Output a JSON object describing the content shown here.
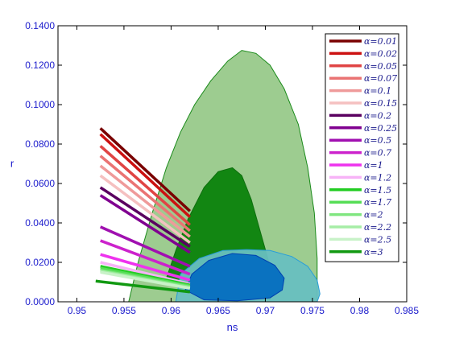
{
  "colors": {
    "axis_text": "#1a1acc",
    "frame": "#000000",
    "contour_95_outer": "#9dcc90",
    "contour_95_inner": "#128612",
    "contour_68_outer": "#68bfc0",
    "contour_68_inner": "#0a72c0"
  },
  "chart_data": {
    "type": "line",
    "xlabel": "ns",
    "ylabel": "r",
    "xlim": [
      0.948,
      0.985
    ],
    "ylim": [
      0,
      0.14
    ],
    "xticks": [
      "0.95",
      "0.955",
      "0.96",
      "0.965",
      "0.97",
      "0.975",
      "0.98",
      "0.985"
    ],
    "xtick_values": [
      0.95,
      0.955,
      0.96,
      0.965,
      0.97,
      0.975,
      0.98,
      0.985
    ],
    "yticks": [
      "0.0000",
      "0.0200",
      "0.0400",
      "0.0600",
      "0.0800",
      "0.1000",
      "0.1200",
      "0.1400"
    ],
    "ytick_values": [
      0,
      0.02,
      0.04,
      0.06,
      0.08,
      0.1,
      0.12,
      0.14
    ],
    "grid": false,
    "legend_position": "top-right",
    "contours": [
      {
        "points": [
          [
            0.9555,
            0
          ],
          [
            0.9565,
            0.02
          ],
          [
            0.958,
            0.045
          ],
          [
            0.9595,
            0.068
          ],
          [
            0.961,
            0.086
          ],
          [
            0.9625,
            0.1
          ],
          [
            0.9642,
            0.112
          ],
          [
            0.966,
            0.122
          ],
          [
            0.9675,
            0.1275
          ],
          [
            0.969,
            0.126
          ],
          [
            0.9705,
            0.12
          ],
          [
            0.972,
            0.108
          ],
          [
            0.9735,
            0.09
          ],
          [
            0.9745,
            0.068
          ],
          [
            0.9752,
            0.045
          ],
          [
            0.9755,
            0.022
          ],
          [
            0.9755,
            0
          ]
        ]
      },
      {
        "points": [
          [
            0.9595,
            0.012
          ],
          [
            0.9605,
            0.026
          ],
          [
            0.9618,
            0.042
          ],
          [
            0.9635,
            0.058
          ],
          [
            0.965,
            0.066
          ],
          [
            0.9665,
            0.068
          ],
          [
            0.9675,
            0.064
          ],
          [
            0.9685,
            0.052
          ],
          [
            0.9695,
            0.035
          ],
          [
            0.9705,
            0.018
          ],
          [
            0.971,
            0.006
          ],
          [
            0.9705,
            0.001
          ],
          [
            0.966,
            0.003
          ],
          [
            0.963,
            0.007
          ]
        ]
      },
      {
        "points": [
          [
            0.9605,
            0
          ],
          [
            0.961,
            0.014
          ],
          [
            0.963,
            0.022
          ],
          [
            0.9655,
            0.026
          ],
          [
            0.968,
            0.0265
          ],
          [
            0.9705,
            0.026
          ],
          [
            0.9728,
            0.023
          ],
          [
            0.9745,
            0.018
          ],
          [
            0.9755,
            0.011
          ],
          [
            0.9758,
            0.004
          ],
          [
            0.9755,
            0
          ]
        ]
      },
      {
        "points": [
          [
            0.9615,
            0.006
          ],
          [
            0.9622,
            0.014
          ],
          [
            0.964,
            0.021
          ],
          [
            0.9665,
            0.0245
          ],
          [
            0.969,
            0.0235
          ],
          [
            0.971,
            0.0185
          ],
          [
            0.972,
            0.012
          ],
          [
            0.9718,
            0.006
          ],
          [
            0.9705,
            0.002
          ],
          [
            0.967,
            0.0005
          ],
          [
            0.9635,
            0.001
          ]
        ]
      }
    ],
    "series": [
      {
        "name": "α=0.01",
        "color": "#7a0000",
        "x": [
          0.9525,
          0.962
        ],
        "y": [
          0.088,
          0.046
        ]
      },
      {
        "name": "α=0.02",
        "color": "#cc1111",
        "x": [
          0.9525,
          0.962
        ],
        "y": [
          0.085,
          0.043
        ]
      },
      {
        "name": "α=0.05",
        "color": "#e04444",
        "x": [
          0.9525,
          0.962
        ],
        "y": [
          0.079,
          0.039
        ]
      },
      {
        "name": "α=0.07",
        "color": "#ea7373",
        "x": [
          0.9525,
          0.962
        ],
        "y": [
          0.074,
          0.036
        ]
      },
      {
        "name": "α=0.1",
        "color": "#ef9a9a",
        "x": [
          0.9525,
          0.962
        ],
        "y": [
          0.069,
          0.033
        ]
      },
      {
        "name": "α=0.15",
        "color": "#f5c0c0",
        "x": [
          0.9525,
          0.962
        ],
        "y": [
          0.064,
          0.03
        ]
      },
      {
        "name": "α=0.2",
        "color": "#5a0060",
        "x": [
          0.9525,
          0.962
        ],
        "y": [
          0.058,
          0.028
        ]
      },
      {
        "name": "α=0.25",
        "color": "#800090",
        "x": [
          0.9525,
          0.962
        ],
        "y": [
          0.054,
          0.025
        ]
      },
      {
        "name": "α=0.5",
        "color": "#a010b0",
        "x": [
          0.9525,
          0.962
        ],
        "y": [
          0.038,
          0.018
        ]
      },
      {
        "name": "α=0.7",
        "color": "#cc22cc",
        "x": [
          0.9525,
          0.962
        ],
        "y": [
          0.031,
          0.014
        ]
      },
      {
        "name": "α=1",
        "color": "#ee33ee",
        "x": [
          0.9525,
          0.962
        ],
        "y": [
          0.024,
          0.011
        ]
      },
      {
        "name": "α=1.2",
        "color": "#f7b3f7",
        "x": [
          0.9525,
          0.962
        ],
        "y": [
          0.02,
          0.009
        ]
      },
      {
        "name": "α=1.5",
        "color": "#22cc22",
        "x": [
          0.9525,
          0.962
        ],
        "y": [
          0.018,
          0.0085
        ]
      },
      {
        "name": "α=1.7",
        "color": "#55dd55",
        "x": [
          0.9525,
          0.962
        ],
        "y": [
          0.017,
          0.008
        ]
      },
      {
        "name": "α=2",
        "color": "#80e680",
        "x": [
          0.9525,
          0.962
        ],
        "y": [
          0.016,
          0.0075
        ]
      },
      {
        "name": "α=2.2",
        "color": "#a6eda6",
        "x": [
          0.9525,
          0.962
        ],
        "y": [
          0.0155,
          0.007
        ]
      },
      {
        "name": "α=2.5",
        "color": "#c8f2c8",
        "x": [
          0.9525,
          0.962
        ],
        "y": [
          0.015,
          0.0068
        ]
      },
      {
        "name": "α=3",
        "color": "#119911",
        "x": [
          0.952,
          0.962
        ],
        "y": [
          0.0105,
          0.005
        ]
      }
    ]
  }
}
